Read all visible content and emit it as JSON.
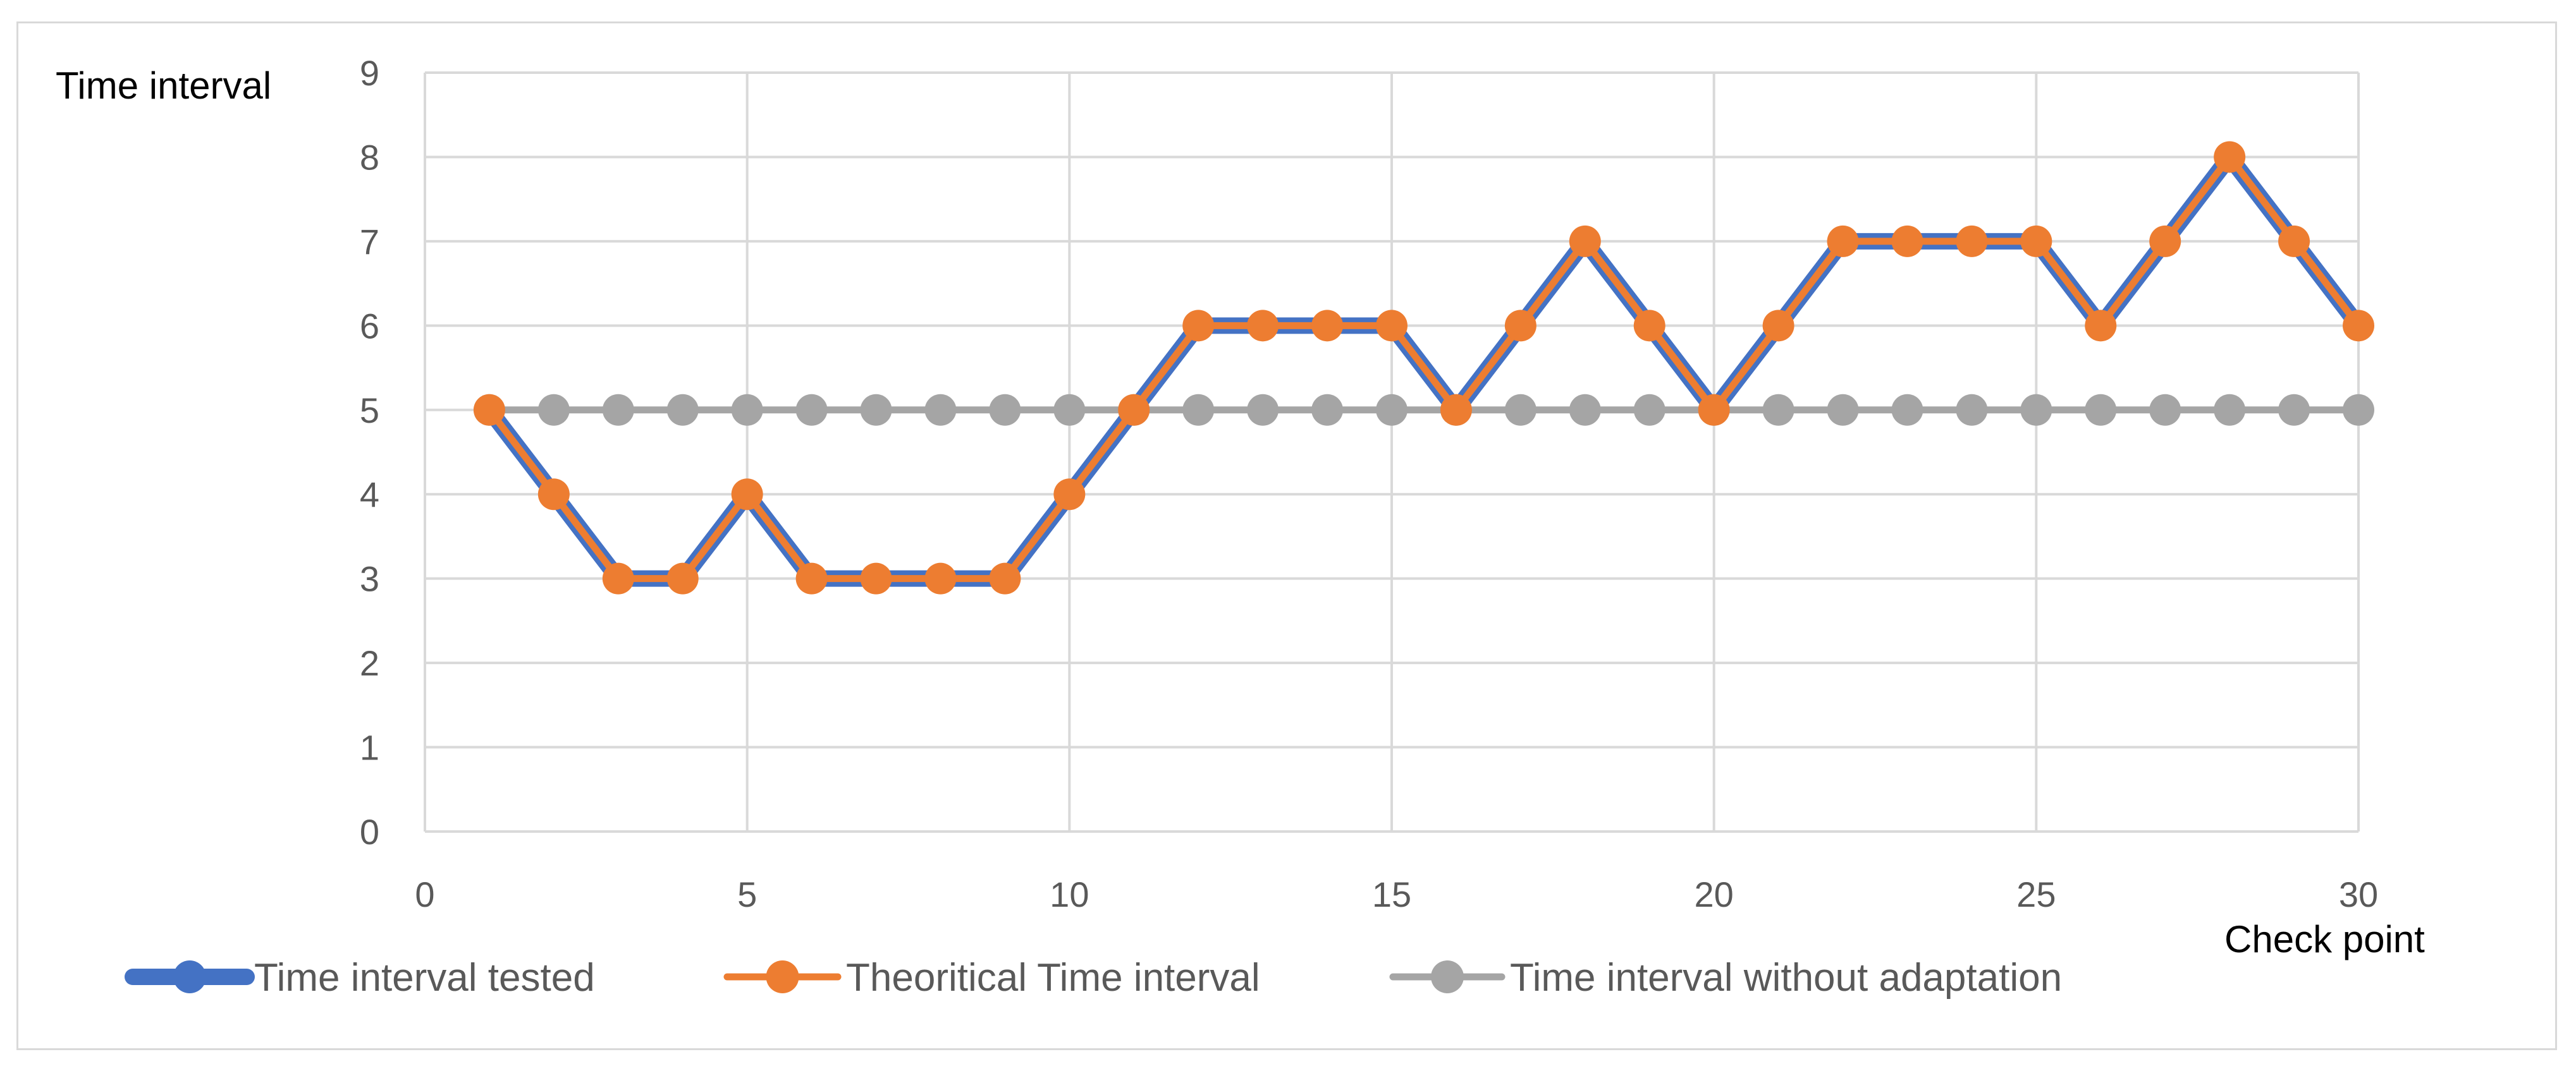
{
  "chart_data": {
    "type": "line",
    "xlabel": "Check point",
    "ylabel": "Time interval",
    "xlim": [
      0,
      30
    ],
    "ylim": [
      0,
      9
    ],
    "x_ticks": [
      0,
      5,
      10,
      15,
      20,
      25,
      30
    ],
    "y_ticks": [
      0,
      1,
      2,
      3,
      4,
      5,
      6,
      7,
      8,
      9
    ],
    "grid": true,
    "legend_position": "bottom",
    "x": [
      1,
      2,
      3,
      4,
      5,
      6,
      7,
      8,
      9,
      10,
      11,
      12,
      13,
      14,
      15,
      16,
      17,
      18,
      19,
      20,
      21,
      22,
      23,
      24,
      25,
      26,
      27,
      28,
      29,
      30
    ],
    "series": [
      {
        "name": "Time interval tested",
        "color": "#4472c4",
        "values": [
          5,
          4,
          3,
          3,
          4,
          3,
          3,
          3,
          3,
          4,
          5,
          6,
          6,
          6,
          6,
          5,
          6,
          7,
          6,
          5,
          6,
          7,
          7,
          7,
          7,
          6,
          7,
          8,
          7,
          6
        ]
      },
      {
        "name": "Theoritical Time interval",
        "color": "#ed7d31",
        "values": [
          5,
          4,
          3,
          3,
          4,
          3,
          3,
          3,
          3,
          4,
          5,
          6,
          6,
          6,
          6,
          5,
          6,
          7,
          6,
          5,
          6,
          7,
          7,
          7,
          7,
          6,
          7,
          8,
          7,
          6
        ]
      },
      {
        "name": "Time interval without adaptation",
        "color": "#a5a5a5",
        "values": [
          5,
          5,
          5,
          5,
          5,
          5,
          5,
          5,
          5,
          5,
          5,
          5,
          5,
          5,
          5,
          5,
          5,
          5,
          5,
          5,
          5,
          5,
          5,
          5,
          5,
          5,
          5,
          5,
          5,
          5
        ]
      }
    ]
  }
}
